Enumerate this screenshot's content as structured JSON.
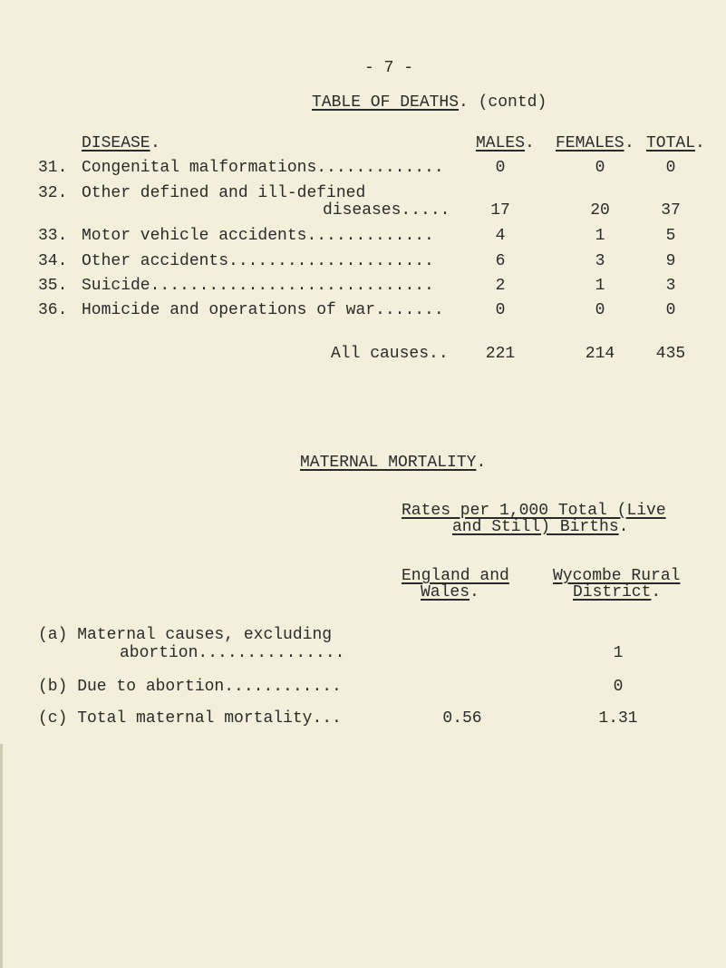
{
  "page_number": "- 7 -",
  "title": "TABLE OF DEATHS",
  "title_suffix": ". (contd)",
  "deaths_table": {
    "headers": {
      "disease": "DISEASE",
      "males": "MALES",
      "females": "FEMALES",
      "total": "TOTAL"
    },
    "header_dot": ".",
    "rows": [
      {
        "num": "31.",
        "label": "Congenital malformations.............",
        "males": "0",
        "females": "0",
        "total": "0"
      },
      {
        "num": "32.",
        "label": "Other defined and ill-defined",
        "label_cont": "diseases.....",
        "males": "17",
        "females": "20",
        "total": "37"
      },
      {
        "num": "33.",
        "label": "Motor vehicle accidents.............",
        "males": "4",
        "females": "1",
        "total": "5"
      },
      {
        "num": "34.",
        "label": "Other accidents.....................",
        "males": "6",
        "females": "3",
        "total": "9"
      },
      {
        "num": "35.",
        "label": "Suicide.............................",
        "males": "2",
        "females": "1",
        "total": "3"
      },
      {
        "num": "36.",
        "label": "Homicide and operations of war.......",
        "males": "0",
        "females": "0",
        "total": "0"
      }
    ],
    "all_causes": {
      "label": "All causes..",
      "males": "221",
      "females": "214",
      "total": "435"
    }
  },
  "maternal": {
    "title": "MATERNAL MORTALITY",
    "title_dot": ".",
    "rates_line1": "Rates per 1,000 Total (Live",
    "rates_line2": "and Still) Births",
    "col1_line1": "England and",
    "col1_line2": "Wales",
    "col2_line1": "Wycombe Rural",
    "col2_line2": "District",
    "rows": [
      {
        "label": "(a) Maternal causes, excluding",
        "label_cont": "abortion...............",
        "england_wales": "",
        "wycombe": "1"
      },
      {
        "label": "(b) Due to abortion............",
        "england_wales": "",
        "wycombe": "0"
      },
      {
        "label": "(c) Total maternal mortality...",
        "england_wales": "0.56",
        "wycombe": "1.31"
      }
    ]
  }
}
